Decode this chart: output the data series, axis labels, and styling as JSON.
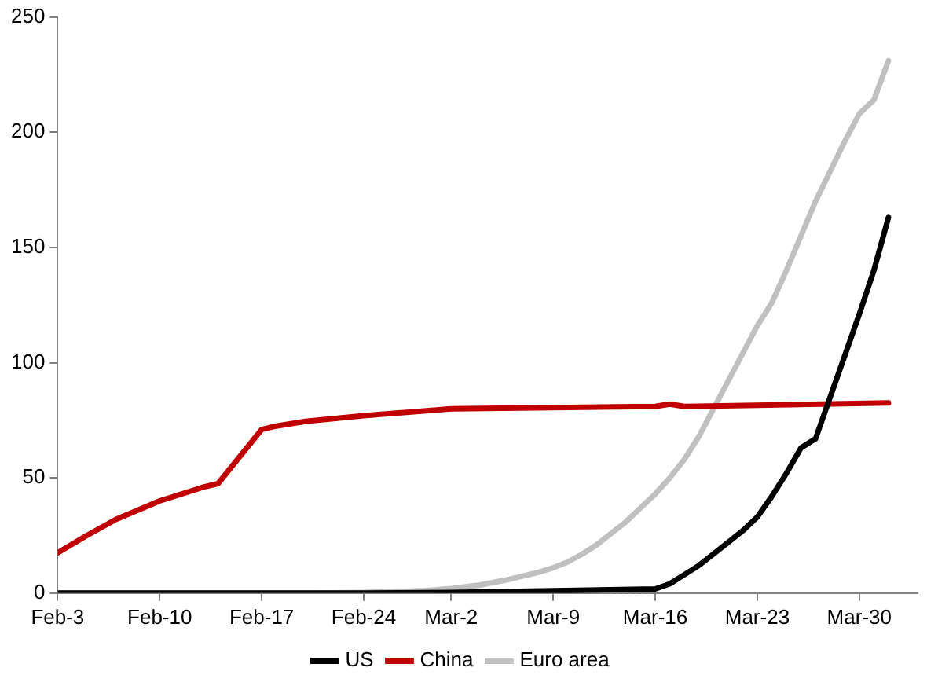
{
  "chart_data": {
    "type": "line",
    "series": [
      {
        "name": "US",
        "color": "#000000",
        "x": [
          "--02-03",
          "--02-24",
          "--03-02",
          "--03-09",
          "--03-16",
          "--03-17",
          "--03-18",
          "--03-19",
          "--03-20",
          "--03-21",
          "--03-22",
          "--03-23",
          "--03-24",
          "--03-25",
          "--03-26",
          "--03-27",
          "--03-28",
          "--03-29",
          "--03-30",
          "--03-31",
          "--04-01"
        ],
        "values": [
          0,
          0,
          0.3,
          1,
          1.8,
          4,
          8,
          12,
          17,
          22,
          27,
          33,
          42,
          52,
          63,
          67,
          85,
          103,
          121,
          140,
          163
        ]
      },
      {
        "name": "China",
        "color": "#c00000",
        "x": [
          "--02-03",
          "--02-05",
          "--02-07",
          "--02-10",
          "--02-13",
          "--02-14",
          "--02-17",
          "--02-18",
          "--02-20",
          "--02-24",
          "--03-02",
          "--03-09",
          "--03-16",
          "--03-17",
          "--03-18",
          "--03-23",
          "--04-01"
        ],
        "values": [
          17.5,
          25,
          32,
          40,
          46,
          47.5,
          71,
          72.5,
          74.5,
          77,
          80,
          80.5,
          81,
          82,
          81,
          81.5,
          82.5
        ]
      },
      {
        "name": "Euro area",
        "color": "#c0c0c0",
        "x": [
          "--02-03",
          "--02-20",
          "--02-24",
          "--02-28",
          "--03-02",
          "--03-04",
          "--03-06",
          "--03-08",
          "--03-09",
          "--03-10",
          "--03-11",
          "--03-12",
          "--03-13",
          "--03-14",
          "--03-15",
          "--03-16",
          "--03-17",
          "--03-18",
          "--03-19",
          "--03-20",
          "--03-21",
          "--03-22",
          "--03-23",
          "--03-24",
          "--03-25",
          "--03-26",
          "--03-27",
          "--03-28",
          "--03-29",
          "--03-30",
          "--03-31",
          "--04-01"
        ],
        "values": [
          0,
          0,
          0.3,
          1,
          2,
          3.5,
          6,
          9,
          11,
          13.5,
          17,
          21,
          26,
          31,
          37,
          43,
          50,
          58,
          68,
          80,
          92,
          104,
          116,
          126,
          140,
          155,
          170,
          183,
          196,
          208,
          214,
          231
        ]
      }
    ],
    "xlim": [
      "--02-03",
      "--04-03"
    ],
    "xticks": [
      {
        "value": "--02-03",
        "label": "Feb-3"
      },
      {
        "value": "--02-10",
        "label": "Feb-10"
      },
      {
        "value": "--02-17",
        "label": "Feb-17"
      },
      {
        "value": "--02-24",
        "label": "Feb-24"
      },
      {
        "value": "--03-02",
        "label": "Mar-2"
      },
      {
        "value": "--03-09",
        "label": "Mar-9"
      },
      {
        "value": "--03-16",
        "label": "Mar-16"
      },
      {
        "value": "--03-23",
        "label": "Mar-23"
      },
      {
        "value": "--03-30",
        "label": "Mar-30"
      }
    ],
    "ylim": [
      0,
      250
    ],
    "yticks": [
      0,
      50,
      100,
      150,
      200,
      250
    ],
    "grid": false,
    "legend": "bottom",
    "marker": "none",
    "line_style": "solid"
  }
}
